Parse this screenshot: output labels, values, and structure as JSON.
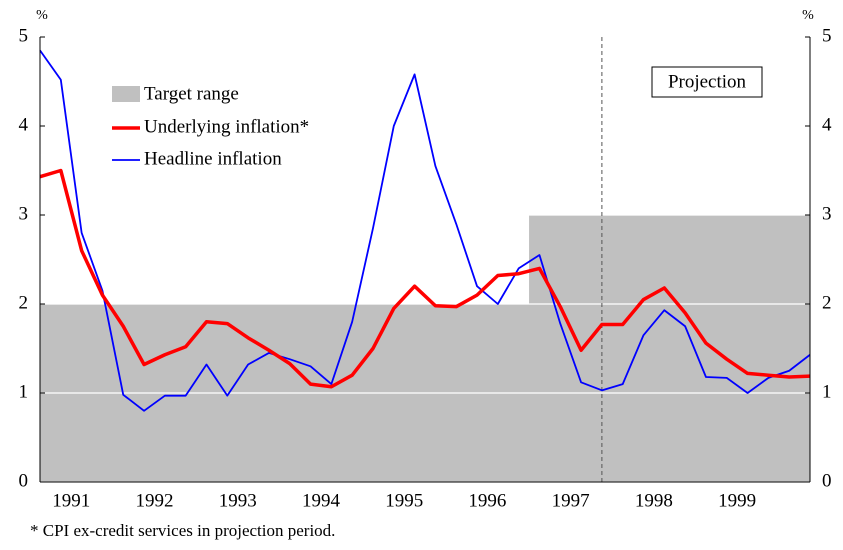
{
  "chart_data": {
    "type": "line",
    "y_unit_left": "%",
    "y_unit_right": "%",
    "footnote": "* CPI ex-credit services in projection period.",
    "annotation": "Projection",
    "projection_x": 1997.875,
    "x": [
      1991.125,
      1991.375,
      1991.625,
      1991.875,
      1992.125,
      1992.375,
      1992.625,
      1992.875,
      1993.125,
      1993.375,
      1993.625,
      1993.875,
      1994.125,
      1994.375,
      1994.625,
      1994.875,
      1995.125,
      1995.375,
      1995.625,
      1995.875,
      1996.125,
      1996.375,
      1996.625,
      1996.875,
      1997.125,
      1997.375,
      1997.625,
      1997.875,
      1998.125,
      1998.375,
      1998.625,
      1998.875,
      1999.125,
      1999.375,
      1999.625,
      1999.875,
      2000.125,
      2000.375
    ],
    "xlim": [
      1991.125,
      2000.375
    ],
    "xticks": [
      {
        "value": 1991.5,
        "label": "1991"
      },
      {
        "value": 1992.5,
        "label": "1992"
      },
      {
        "value": 1993.5,
        "label": "1993"
      },
      {
        "value": 1994.5,
        "label": "1994"
      },
      {
        "value": 1995.5,
        "label": "1995"
      },
      {
        "value": 1996.5,
        "label": "1996"
      },
      {
        "value": 1997.5,
        "label": "1997"
      },
      {
        "value": 1998.5,
        "label": "1998"
      },
      {
        "value": 1999.5,
        "label": "1999"
      }
    ],
    "ylim": [
      0,
      5
    ],
    "yticks": [
      0,
      1,
      2,
      3,
      4,
      5
    ],
    "y2lim": [
      0,
      5
    ],
    "y2ticks": [
      0,
      1,
      2,
      3,
      4,
      5
    ],
    "grid": true,
    "target_range": {
      "name": "Target range",
      "color": "#c0c0c0",
      "blocks": [
        {
          "x0": 1991.125,
          "x1": 2000.375,
          "y0": 0,
          "y1": 2
        },
        {
          "x0": 1997.0,
          "x1": 2000.375,
          "y0": 2,
          "y1": 3
        }
      ]
    },
    "series": [
      {
        "name": "Underlying inflation*",
        "color": "#ff0000",
        "width": 3.5,
        "values": [
          3.43,
          3.5,
          2.6,
          2.1,
          1.75,
          1.32,
          1.43,
          1.52,
          1.8,
          1.78,
          1.62,
          1.48,
          1.33,
          1.1,
          1.07,
          1.2,
          1.5,
          1.95,
          2.2,
          1.98,
          1.97,
          2.1,
          2.32,
          2.34,
          2.4,
          1.97,
          1.48,
          1.77,
          1.77,
          2.05,
          2.18,
          1.9,
          1.56,
          1.38,
          1.22,
          1.2,
          1.18,
          1.19
        ]
      },
      {
        "name": "Headline inflation",
        "color": "#0000ff",
        "width": 1.8,
        "values": [
          4.85,
          4.52,
          2.8,
          2.15,
          0.98,
          0.8,
          0.97,
          0.97,
          1.32,
          0.97,
          1.32,
          1.45,
          1.38,
          1.3,
          1.1,
          1.8,
          2.85,
          4.0,
          4.58,
          3.55,
          2.9,
          2.2,
          2.0,
          2.4,
          2.55,
          1.78,
          1.12,
          1.03,
          1.1,
          1.65,
          1.93,
          1.75,
          1.18,
          1.17,
          1.0,
          1.17,
          1.25,
          1.43
        ]
      }
    ]
  }
}
